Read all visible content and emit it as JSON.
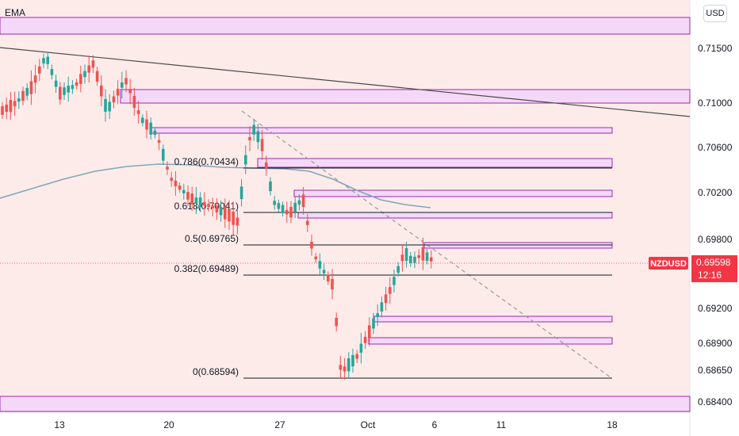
{
  "indicator_label": "EMA",
  "currency_button": "USD",
  "chart_data": {
    "type": "candlestick",
    "symbol": "NZDUSD",
    "ylim": [
      0.683,
      0.7185
    ],
    "y_ticks": [
      "0.71500",
      "0.71000",
      "0.70600",
      "0.70200",
      "0.69800",
      "0.69200",
      "0.68900",
      "0.68650",
      "0.68400"
    ],
    "x_ticks": [
      "13",
      "20",
      "27",
      "Oct",
      "6",
      "11",
      "18"
    ],
    "price_tag": {
      "symbol": "NZDUSD",
      "price": "0.69598",
      "countdown": "12:16"
    },
    "fib_levels": [
      {
        "label": "0.786(0.70434)",
        "value": 0.70434
      },
      {
        "label": "0.618(0.70041)",
        "value": 0.70041
      },
      {
        "label": "0.5(0.69765)",
        "value": 0.69765
      },
      {
        "label": "0.382(0.69489)",
        "value": 0.69489
      },
      {
        "label": "0(0.68594)",
        "value": 0.68594
      }
    ],
    "colors": {
      "up": "#26a69a",
      "down": "#ef5350",
      "zone_fill": "#f3d9f7",
      "zone_border": "#9c27b0",
      "background_tint": "#fdebea",
      "ema": "#7fa8b8",
      "trendline": "#4a4a4a",
      "price_tag": "#f23645"
    }
  }
}
